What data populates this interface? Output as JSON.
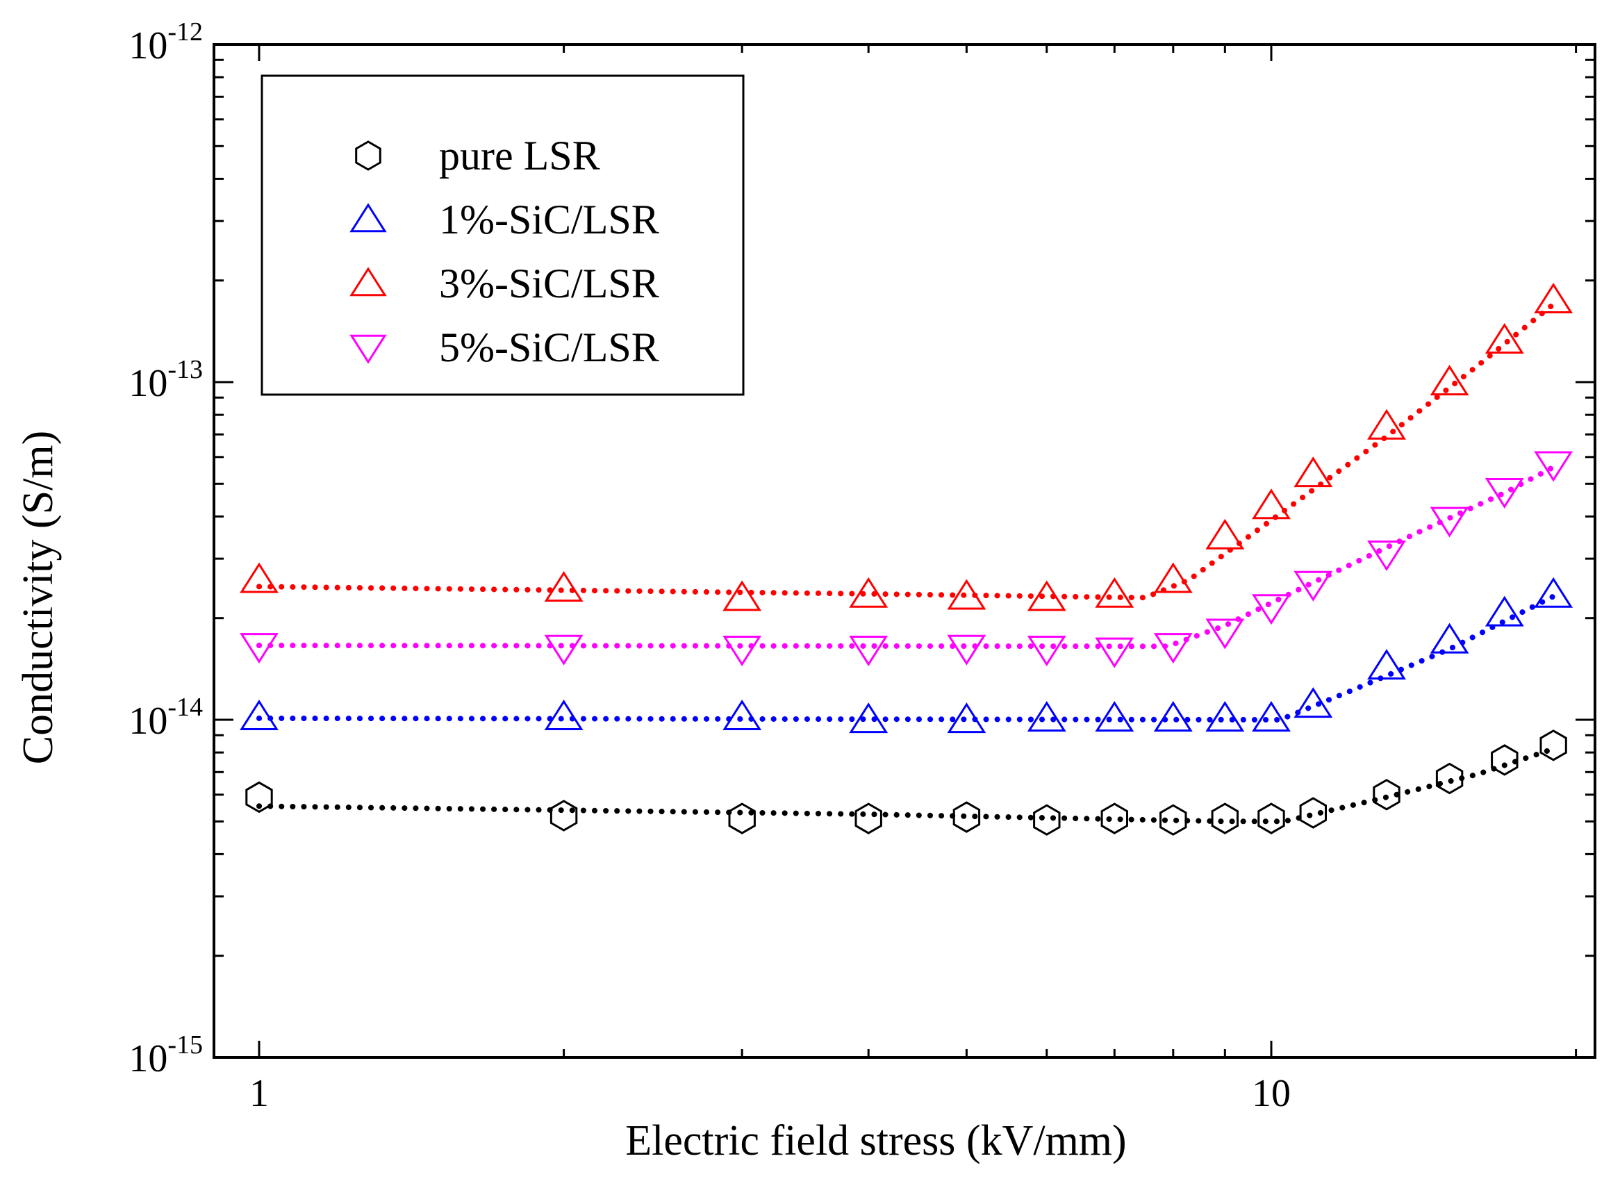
{
  "chart_data": {
    "type": "scatter",
    "title": "",
    "xlabel": "Electric field stress (kV/mm)",
    "ylabel": "Conductivity (S/m)",
    "xscale": "log",
    "yscale": "log",
    "xlim": [
      0.9,
      20
    ],
    "ylim": [
      1e-15,
      1e-12
    ],
    "x_ticks": [
      {
        "value": 1,
        "label": "1"
      },
      {
        "value": 10,
        "label": "10"
      }
    ],
    "y_ticks": [
      {
        "value": 1e-15,
        "base": "10",
        "exp": "-15"
      },
      {
        "value": 1e-14,
        "base": "10",
        "exp": "-14"
      },
      {
        "value": 1e-13,
        "base": "10",
        "exp": "-13"
      },
      {
        "value": 1e-12,
        "base": "10",
        "exp": "-12"
      }
    ],
    "grid": false,
    "legend_position": "top-left",
    "series": [
      {
        "name": "pure LSR",
        "marker": "hexagon",
        "color": "#000000",
        "x": [
          1,
          2,
          3,
          4,
          5,
          6,
          7,
          8,
          9,
          10,
          11,
          13,
          15,
          17,
          19
        ],
        "y": [
          5.9e-15,
          5.2e-15,
          5.1e-15,
          5.1e-15,
          5.15e-15,
          5.05e-15,
          5.1e-15,
          5.05e-15,
          5.1e-15,
          5.1e-15,
          5.3e-15,
          6e-15,
          6.7e-15,
          7.6e-15,
          8.4e-15
        ],
        "fit": [
          [
            1,
            5.55e-15
          ],
          [
            4,
            5.25e-15
          ],
          [
            9,
            5e-15
          ],
          [
            10.3,
            5e-15
          ],
          [
            13,
            5.9e-15
          ],
          [
            16,
            6.9e-15
          ],
          [
            19,
            8.2e-15
          ]
        ]
      },
      {
        "name": "1%-SiC/LSR",
        "marker": "triangle-up",
        "color": "#0000ff",
        "x": [
          1,
          2,
          3,
          4,
          5,
          6,
          7,
          8,
          9,
          10,
          11,
          13,
          15,
          17,
          19
        ],
        "y": [
          1.02e-14,
          1.02e-14,
          1.02e-14,
          1e-14,
          1e-14,
          1.01e-14,
          1.01e-14,
          1.01e-14,
          1.01e-14,
          1.01e-14,
          1.11e-14,
          1.44e-14,
          1.72e-14,
          2.07e-14,
          2.35e-14
        ],
        "fit": [
          [
            1,
            1.01e-14
          ],
          [
            10.2,
            1e-14
          ],
          [
            12,
            1.22e-14
          ],
          [
            15,
            1.62e-14
          ],
          [
            19,
            2.32e-14
          ]
        ]
      },
      {
        "name": "3%-SiC/LSR",
        "marker": "triangle-up",
        "color": "#ff0000",
        "x": [
          1,
          2,
          3,
          4,
          5,
          6,
          7,
          8,
          9,
          10,
          11,
          13,
          15,
          17,
          19
        ],
        "y": [
          2.6e-14,
          2.45e-14,
          2.3e-14,
          2.35e-14,
          2.32e-14,
          2.3e-14,
          2.35e-14,
          2.6e-14,
          3.5e-14,
          4.3e-14,
          5.35e-14,
          7.4e-14,
          1e-13,
          1.33e-13,
          1.75e-13
        ],
        "fit": [
          [
            1,
            2.48e-14
          ],
          [
            4,
            2.36e-14
          ],
          [
            7.5,
            2.3e-14
          ],
          [
            8.3,
            2.6e-14
          ],
          [
            10,
            3.9e-14
          ],
          [
            13,
            6.9e-14
          ],
          [
            16,
            1.12e-13
          ],
          [
            19,
            1.7e-13
          ]
        ]
      },
      {
        "name": "5%-SiC/LSR",
        "marker": "triangle-down",
        "color": "#ff00ff",
        "x": [
          1,
          2,
          3,
          4,
          5,
          6,
          7,
          8,
          9,
          10,
          11,
          13,
          15,
          17,
          19
        ],
        "y": [
          1.65e-14,
          1.63e-14,
          1.62e-14,
          1.62e-14,
          1.63e-14,
          1.62e-14,
          1.6e-14,
          1.65e-14,
          1.82e-14,
          2.15e-14,
          2.52e-14,
          3.1e-14,
          3.9e-14,
          4.75e-14,
          5.7e-14
        ],
        "fit": [
          [
            1,
            1.66e-14
          ],
          [
            7.9,
            1.65e-14
          ],
          [
            9,
            1.9e-14
          ],
          [
            11,
            2.55e-14
          ],
          [
            14,
            3.6e-14
          ],
          [
            17,
            4.7e-14
          ],
          [
            19,
            5.6e-14
          ]
        ]
      }
    ]
  }
}
